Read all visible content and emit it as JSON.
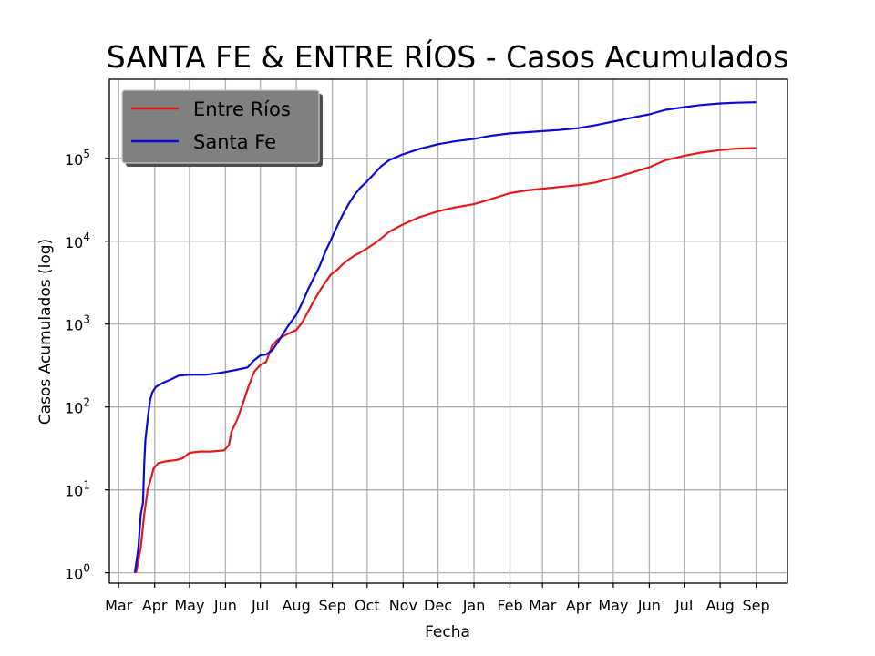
{
  "chart_data": {
    "type": "line",
    "title": "SANTA FE & ENTRE RÍOS - Casos Acumulados",
    "xlabel": "Fecha",
    "ylabel": "Casos Acumulados (log)",
    "y_scale": "log",
    "ylim": [
      0.75,
      900000
    ],
    "xlim": [
      "2020-02-22",
      "2021-09-28"
    ],
    "grid": true,
    "legend_position": "top-left",
    "x_ticks": [
      {
        "date": "2020-03-01",
        "label": "Mar"
      },
      {
        "date": "2020-04-01",
        "label": "Apr"
      },
      {
        "date": "2020-05-01",
        "label": "May"
      },
      {
        "date": "2020-06-01",
        "label": "Jun"
      },
      {
        "date": "2020-07-01",
        "label": "Jul"
      },
      {
        "date": "2020-08-01",
        "label": "Aug"
      },
      {
        "date": "2020-09-01",
        "label": "Sep"
      },
      {
        "date": "2020-10-01",
        "label": "Oct"
      },
      {
        "date": "2020-11-01",
        "label": "Nov"
      },
      {
        "date": "2020-12-01",
        "label": "Dec"
      },
      {
        "date": "2021-01-01",
        "label": "Jan"
      },
      {
        "date": "2021-02-01",
        "label": "Feb"
      },
      {
        "date": "2021-03-01",
        "label": "Mar"
      },
      {
        "date": "2021-04-01",
        "label": "Apr"
      },
      {
        "date": "2021-05-01",
        "label": "May"
      },
      {
        "date": "2021-06-01",
        "label": "Jun"
      },
      {
        "date": "2021-07-01",
        "label": "Jul"
      },
      {
        "date": "2021-08-01",
        "label": "Aug"
      },
      {
        "date": "2021-09-01",
        "label": "Sep"
      }
    ],
    "y_ticks": [
      {
        "value": 1,
        "base": "10",
        "exp": "0"
      },
      {
        "value": 10,
        "base": "10",
        "exp": "1"
      },
      {
        "value": 100,
        "base": "10",
        "exp": "2"
      },
      {
        "value": 1000,
        "base": "10",
        "exp": "3"
      },
      {
        "value": 10000,
        "base": "10",
        "exp": "4"
      },
      {
        "value": 100000,
        "base": "10",
        "exp": "5"
      }
    ],
    "series": [
      {
        "name": "Entre Ríos",
        "color": "#e41a1a",
        "points": [
          [
            "2020-03-16",
            1
          ],
          [
            "2020-03-20",
            2
          ],
          [
            "2020-03-23",
            5
          ],
          [
            "2020-03-26",
            10
          ],
          [
            "2020-03-29",
            14
          ],
          [
            "2020-03-31",
            18
          ],
          [
            "2020-04-04",
            21
          ],
          [
            "2020-04-10",
            22
          ],
          [
            "2020-04-20",
            23
          ],
          [
            "2020-04-25",
            24
          ],
          [
            "2020-05-01",
            28
          ],
          [
            "2020-05-10",
            29
          ],
          [
            "2020-05-20",
            29
          ],
          [
            "2020-05-31",
            30
          ],
          [
            "2020-06-04",
            35
          ],
          [
            "2020-06-06",
            50
          ],
          [
            "2020-06-11",
            70
          ],
          [
            "2020-06-16",
            110
          ],
          [
            "2020-06-21",
            180
          ],
          [
            "2020-06-26",
            270
          ],
          [
            "2020-07-01",
            320
          ],
          [
            "2020-07-06",
            350
          ],
          [
            "2020-07-11",
            550
          ],
          [
            "2020-07-16",
            650
          ],
          [
            "2020-07-21",
            720
          ],
          [
            "2020-07-26",
            780
          ],
          [
            "2020-08-01",
            850
          ],
          [
            "2020-08-06",
            1050
          ],
          [
            "2020-08-11",
            1400
          ],
          [
            "2020-08-16",
            1900
          ],
          [
            "2020-08-21",
            2500
          ],
          [
            "2020-08-26",
            3200
          ],
          [
            "2020-08-31",
            4000
          ],
          [
            "2020-09-05",
            4500
          ],
          [
            "2020-09-10",
            5300
          ],
          [
            "2020-09-15",
            6000
          ],
          [
            "2020-09-20",
            6700
          ],
          [
            "2020-09-25",
            7300
          ],
          [
            "2020-10-01",
            8200
          ],
          [
            "2020-10-10",
            10000
          ],
          [
            "2020-10-20",
            13000
          ],
          [
            "2020-11-01",
            16000
          ],
          [
            "2020-11-15",
            19500
          ],
          [
            "2020-12-01",
            23000
          ],
          [
            "2020-12-15",
            25500
          ],
          [
            "2021-01-01",
            28000
          ],
          [
            "2021-01-15",
            32000
          ],
          [
            "2021-02-01",
            38000
          ],
          [
            "2021-02-15",
            41000
          ],
          [
            "2021-03-01",
            43000
          ],
          [
            "2021-03-15",
            45000
          ],
          [
            "2021-04-01",
            47500
          ],
          [
            "2021-04-15",
            51000
          ],
          [
            "2021-05-01",
            58000
          ],
          [
            "2021-05-15",
            66000
          ],
          [
            "2021-06-01",
            78000
          ],
          [
            "2021-06-15",
            95000
          ],
          [
            "2021-07-01",
            107000
          ],
          [
            "2021-07-15",
            117000
          ],
          [
            "2021-08-01",
            126000
          ],
          [
            "2021-08-15",
            131000
          ],
          [
            "2021-09-01",
            133000
          ]
        ]
      },
      {
        "name": "Santa Fe",
        "color": "#0a0ad6",
        "points": [
          [
            "2020-03-15",
            1
          ],
          [
            "2020-03-18",
            2
          ],
          [
            "2020-03-20",
            5
          ],
          [
            "2020-03-22",
            7
          ],
          [
            "2020-03-23",
            20
          ],
          [
            "2020-03-24",
            40
          ],
          [
            "2020-03-26",
            70
          ],
          [
            "2020-03-28",
            120
          ],
          [
            "2020-03-30",
            150
          ],
          [
            "2020-04-02",
            175
          ],
          [
            "2020-04-08",
            195
          ],
          [
            "2020-04-15",
            215
          ],
          [
            "2020-04-22",
            240
          ],
          [
            "2020-05-01",
            245
          ],
          [
            "2020-05-15",
            245
          ],
          [
            "2020-05-25",
            255
          ],
          [
            "2020-06-01",
            265
          ],
          [
            "2020-06-10",
            280
          ],
          [
            "2020-06-20",
            300
          ],
          [
            "2020-06-25",
            360
          ],
          [
            "2020-07-01",
            420
          ],
          [
            "2020-07-06",
            430
          ],
          [
            "2020-07-11",
            480
          ],
          [
            "2020-07-16",
            600
          ],
          [
            "2020-07-21",
            780
          ],
          [
            "2020-07-26",
            1000
          ],
          [
            "2020-08-01",
            1300
          ],
          [
            "2020-08-06",
            1800
          ],
          [
            "2020-08-11",
            2600
          ],
          [
            "2020-08-16",
            3600
          ],
          [
            "2020-08-21",
            5000
          ],
          [
            "2020-08-26",
            7500
          ],
          [
            "2020-08-31",
            10500
          ],
          [
            "2020-09-05",
            15000
          ],
          [
            "2020-09-10",
            21000
          ],
          [
            "2020-09-15",
            28000
          ],
          [
            "2020-09-20",
            36000
          ],
          [
            "2020-09-25",
            44000
          ],
          [
            "2020-10-01",
            53000
          ],
          [
            "2020-10-07",
            65000
          ],
          [
            "2020-10-13",
            80000
          ],
          [
            "2020-10-20",
            95000
          ],
          [
            "2020-11-01",
            112000
          ],
          [
            "2020-11-15",
            130000
          ],
          [
            "2020-12-01",
            148000
          ],
          [
            "2020-12-15",
            160000
          ],
          [
            "2021-01-01",
            172000
          ],
          [
            "2021-01-15",
            187000
          ],
          [
            "2021-02-01",
            200000
          ],
          [
            "2021-02-15",
            207000
          ],
          [
            "2021-03-01",
            213000
          ],
          [
            "2021-03-15",
            220000
          ],
          [
            "2021-04-01",
            232000
          ],
          [
            "2021-04-15",
            250000
          ],
          [
            "2021-05-01",
            278000
          ],
          [
            "2021-05-15",
            305000
          ],
          [
            "2021-06-01",
            340000
          ],
          [
            "2021-06-15",
            385000
          ],
          [
            "2021-07-01",
            415000
          ],
          [
            "2021-07-15",
            440000
          ],
          [
            "2021-08-01",
            460000
          ],
          [
            "2021-08-15",
            470000
          ],
          [
            "2021-09-01",
            475000
          ]
        ]
      }
    ]
  }
}
